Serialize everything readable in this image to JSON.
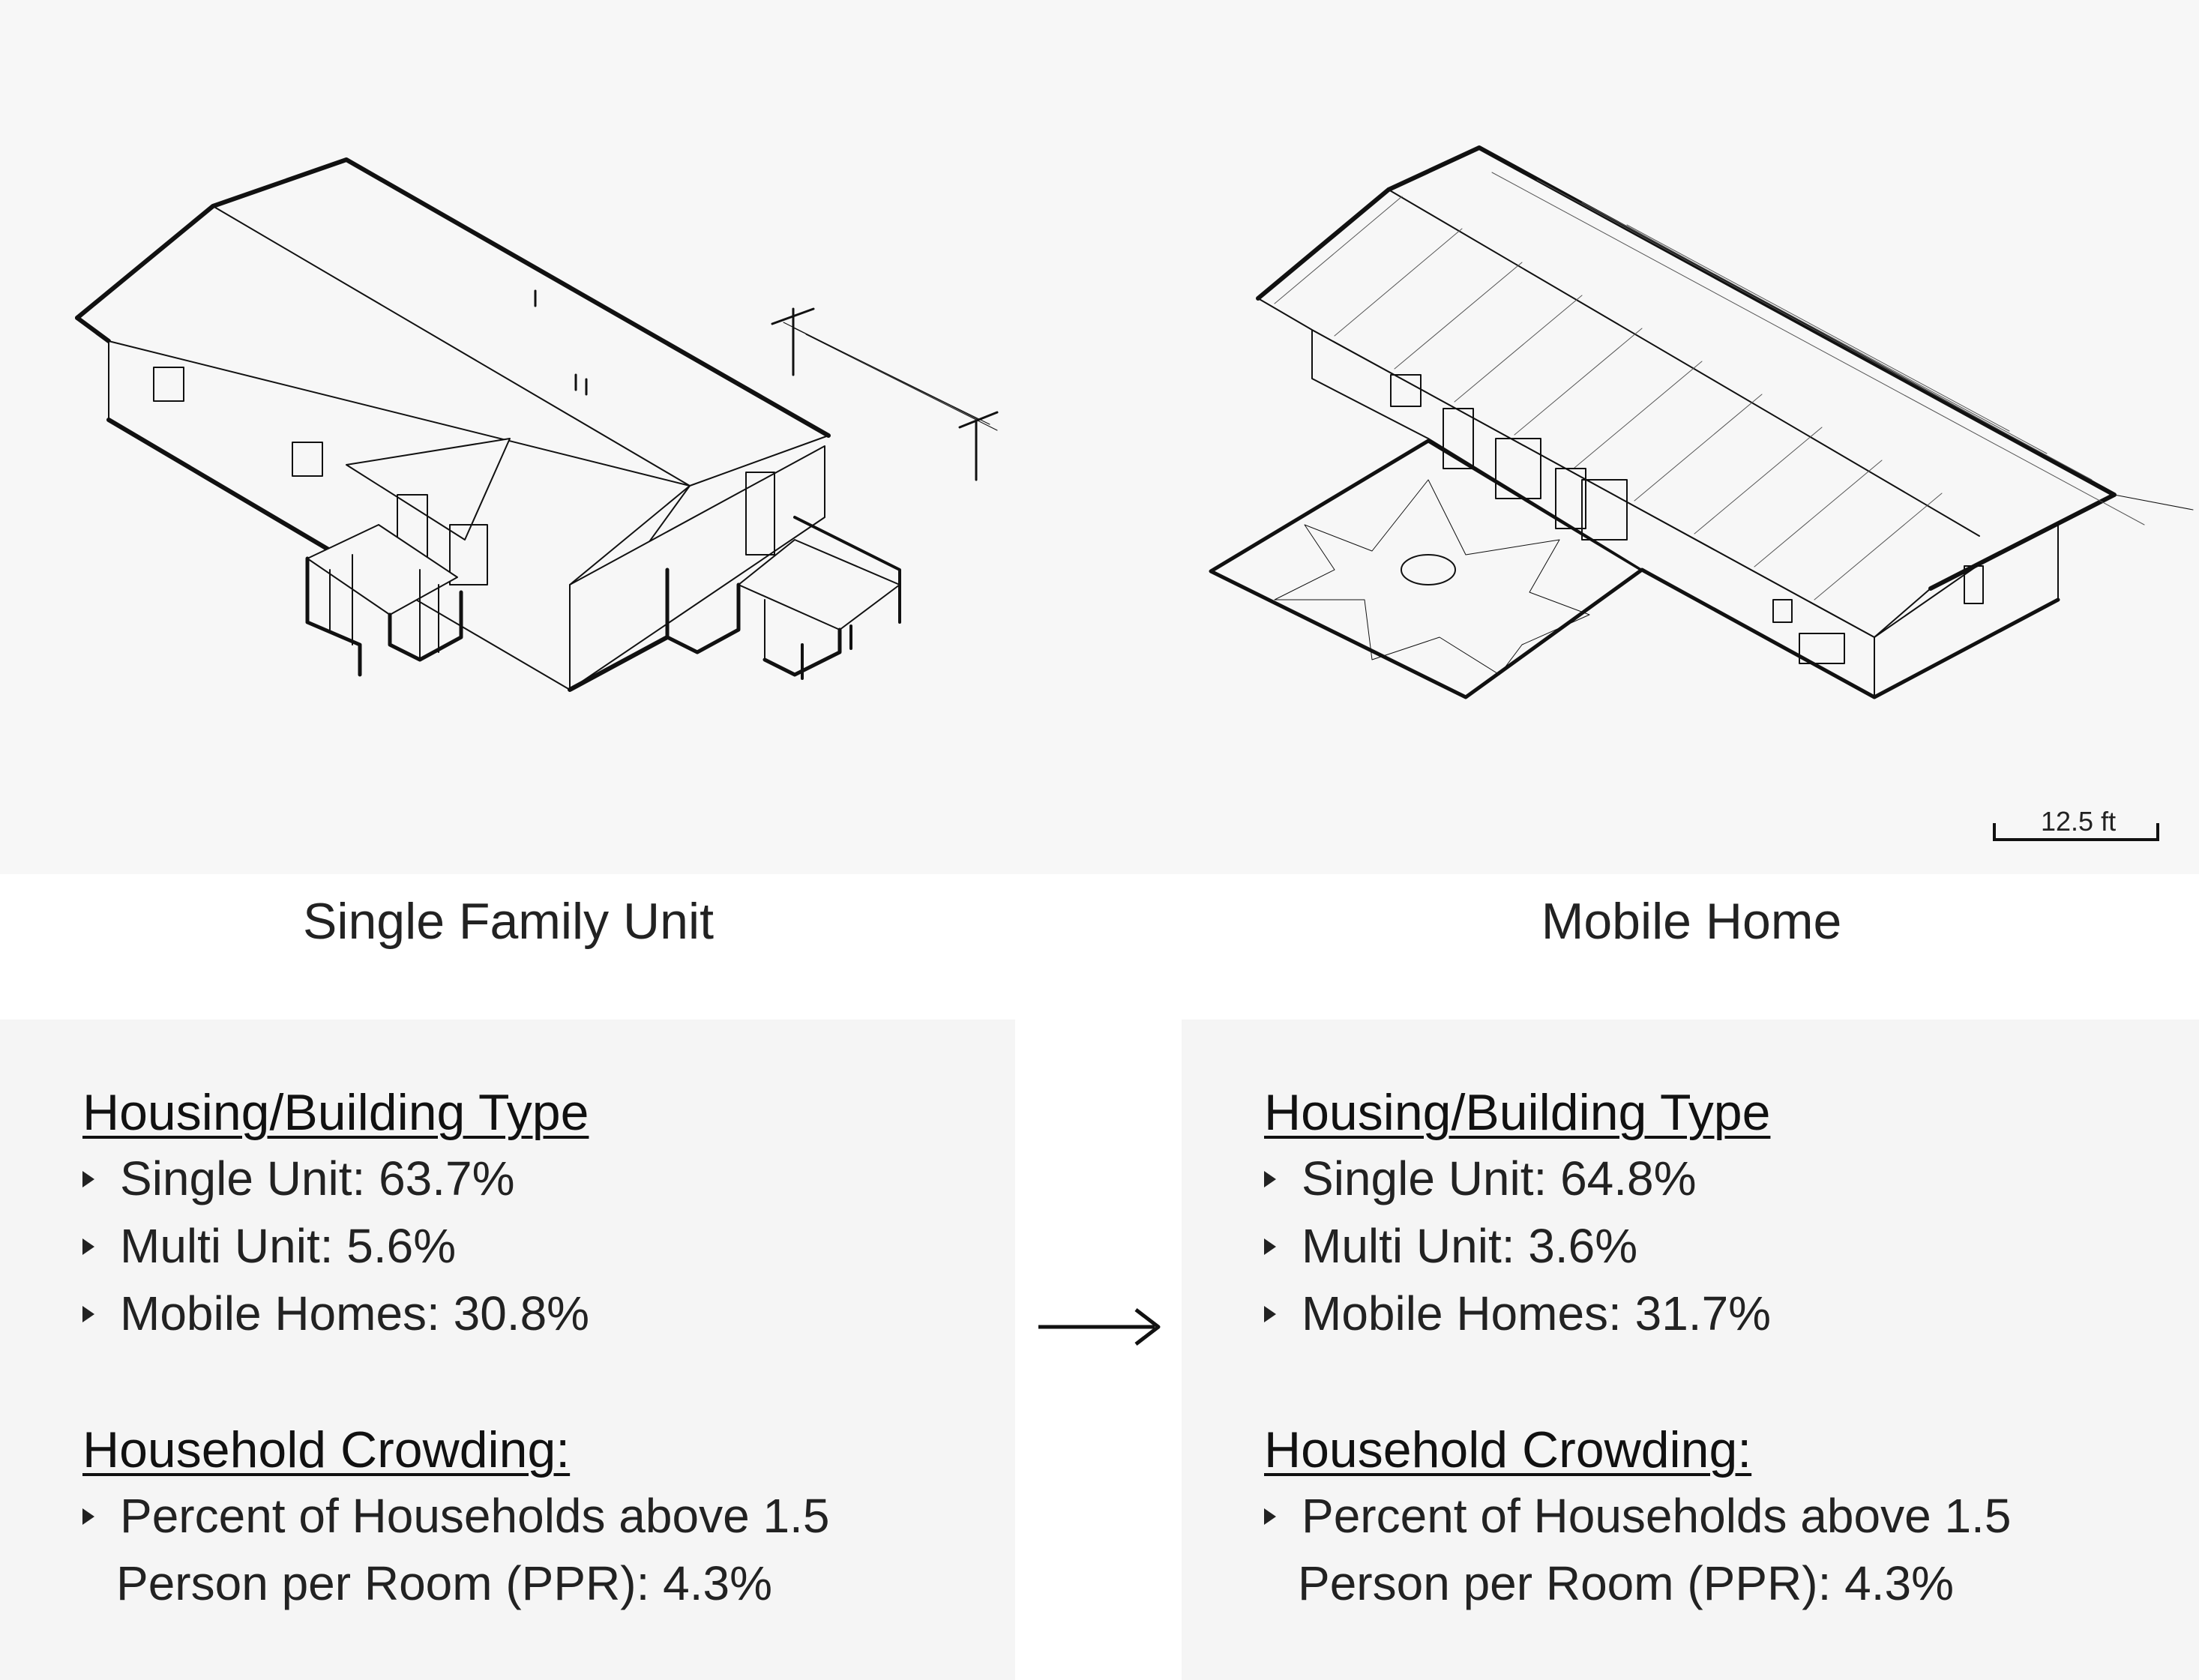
{
  "illustrations": {
    "left_icon": "single-family-house-isometric",
    "right_icon": "mobile-home-isometric",
    "scale_bar_label": "12.5 ft"
  },
  "captions": {
    "left": "Single Family Unit",
    "right": "Mobile Home"
  },
  "left_panel": {
    "housing_title": "Housing/Building Type",
    "housing_items": [
      "Single Unit: 63.7%",
      "Multi Unit: 5.6%",
      "Mobile Homes: 30.8%"
    ],
    "crowding_title": "Household Crowding:",
    "crowding_line1": "Percent of Households above 1.5",
    "crowding_line2": "Person per Room (PPR): 4.3%"
  },
  "right_panel": {
    "housing_title": "Housing/Building Type",
    "housing_items": [
      "Single Unit: 64.8%",
      "Multi Unit: 3.6%",
      "Mobile Homes: 31.7%"
    ],
    "crowding_title": "Household Crowding:",
    "crowding_line1": "Percent of Households above 1.5",
    "crowding_line2": "Person per Room (PPR): 4.3%"
  },
  "transition_icon": "right-arrow-icon",
  "colors": {
    "drawing_bg": "#f7f7f7",
    "panel_bg": "#f5f5f5",
    "ink": "#111111"
  }
}
